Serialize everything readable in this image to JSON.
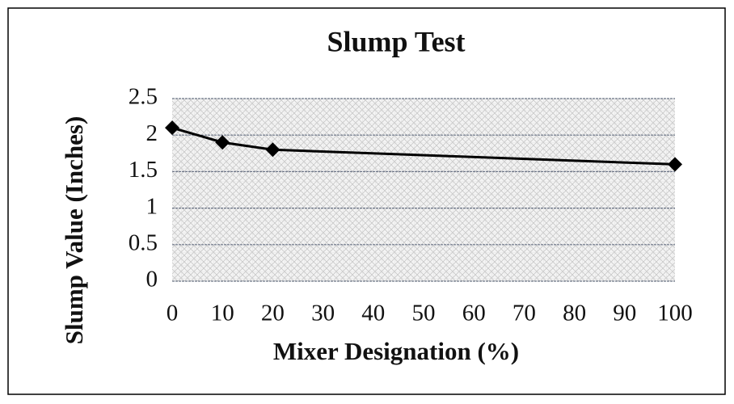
{
  "chart_data": {
    "type": "line",
    "title": "Slump Test",
    "x_label": "Mixer Designation (%)",
    "y_label": "Slump Value (Inches)",
    "x": [
      0,
      10,
      20,
      100
    ],
    "values": [
      2.1,
      1.9,
      1.8,
      1.6
    ],
    "color": "#000000",
    "xlim": [
      0,
      100
    ],
    "xticks": [
      0,
      10,
      20,
      30,
      40,
      50,
      60,
      70,
      80,
      90,
      100
    ],
    "ylim": [
      0,
      2.5
    ],
    "yticks": [
      0,
      0.5,
      1,
      1.5,
      2,
      2.5
    ],
    "grid": true
  }
}
